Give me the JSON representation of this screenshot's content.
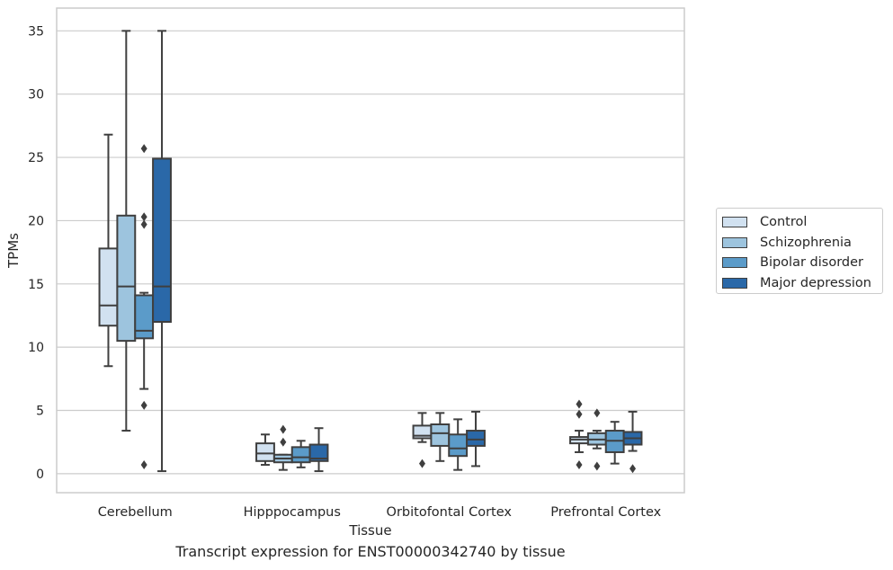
{
  "chart_data": {
    "type": "box",
    "caption": "Transcript expression for ENST00000342740 by tissue",
    "xlabel": "Tissue",
    "ylabel": "TPMs",
    "ylim": [
      -1.5,
      36.8
    ],
    "yticks": [
      0,
      5,
      10,
      15,
      20,
      25,
      30,
      35
    ],
    "grid": true,
    "legend_position": "right",
    "categories": [
      "Cerebellum",
      "Hipppocampus",
      "Orbitofontal Cortex",
      "Prefrontal Cortex"
    ],
    "series": [
      {
        "name": "Control",
        "color": "#d1e1f0",
        "boxes": [
          {
            "whislo": 8.5,
            "q1": 11.7,
            "med": 13.3,
            "q3": 17.8,
            "whishi": 26.8,
            "fliers": []
          },
          {
            "whislo": 0.7,
            "q1": 1.0,
            "med": 1.6,
            "q3": 2.4,
            "whishi": 3.1,
            "fliers": []
          },
          {
            "whislo": 2.5,
            "q1": 2.8,
            "med": 3.0,
            "q3": 3.8,
            "whishi": 4.8,
            "fliers": [
              0.8
            ]
          },
          {
            "whislo": 1.7,
            "q1": 2.4,
            "med": 2.7,
            "q3": 2.9,
            "whishi": 3.4,
            "fliers": [
              5.5,
              4.7,
              0.7
            ]
          }
        ]
      },
      {
        "name": "Schizophrenia",
        "color": "#9dc4de",
        "boxes": [
          {
            "whislo": 3.4,
            "q1": 10.5,
            "med": 14.8,
            "q3": 20.4,
            "whishi": 35.0,
            "fliers": []
          },
          {
            "whislo": 0.3,
            "q1": 0.9,
            "med": 1.2,
            "q3": 1.5,
            "whishi": 1.5,
            "fliers": [
              3.5,
              2.5
            ]
          },
          {
            "whislo": 1.0,
            "q1": 2.2,
            "med": 3.2,
            "q3": 3.9,
            "whishi": 4.8,
            "fliers": []
          },
          {
            "whislo": 2.0,
            "q1": 2.3,
            "med": 2.7,
            "q3": 3.2,
            "whishi": 3.4,
            "fliers": [
              4.8,
              0.6
            ]
          }
        ]
      },
      {
        "name": "Bipolar disorder",
        "color": "#5b9bc9",
        "boxes": [
          {
            "whislo": 6.7,
            "q1": 10.7,
            "med": 11.3,
            "q3": 14.1,
            "whishi": 14.3,
            "fliers": [
              25.7,
              20.3,
              19.7,
              5.4,
              0.7
            ]
          },
          {
            "whislo": 0.5,
            "q1": 0.9,
            "med": 1.3,
            "q3": 2.1,
            "whishi": 2.6,
            "fliers": []
          },
          {
            "whislo": 0.3,
            "q1": 1.4,
            "med": 2.0,
            "q3": 3.1,
            "whishi": 4.3,
            "fliers": []
          },
          {
            "whislo": 0.8,
            "q1": 1.7,
            "med": 2.6,
            "q3": 3.4,
            "whishi": 4.1,
            "fliers": []
          }
        ]
      },
      {
        "name": "Major depression",
        "color": "#2a68a8",
        "boxes": [
          {
            "whislo": 0.2,
            "q1": 12.0,
            "med": 14.8,
            "q3": 24.9,
            "whishi": 35.0,
            "fliers": []
          },
          {
            "whislo": 0.2,
            "q1": 1.0,
            "med": 1.2,
            "q3": 2.3,
            "whishi": 3.6,
            "fliers": []
          },
          {
            "whislo": 0.6,
            "q1": 2.2,
            "med": 2.7,
            "q3": 3.4,
            "whishi": 4.9,
            "fliers": []
          },
          {
            "whislo": 1.8,
            "q1": 2.3,
            "med": 2.8,
            "q3": 3.3,
            "whishi": 4.9,
            "fliers": [
              0.4
            ]
          }
        ]
      }
    ]
  }
}
